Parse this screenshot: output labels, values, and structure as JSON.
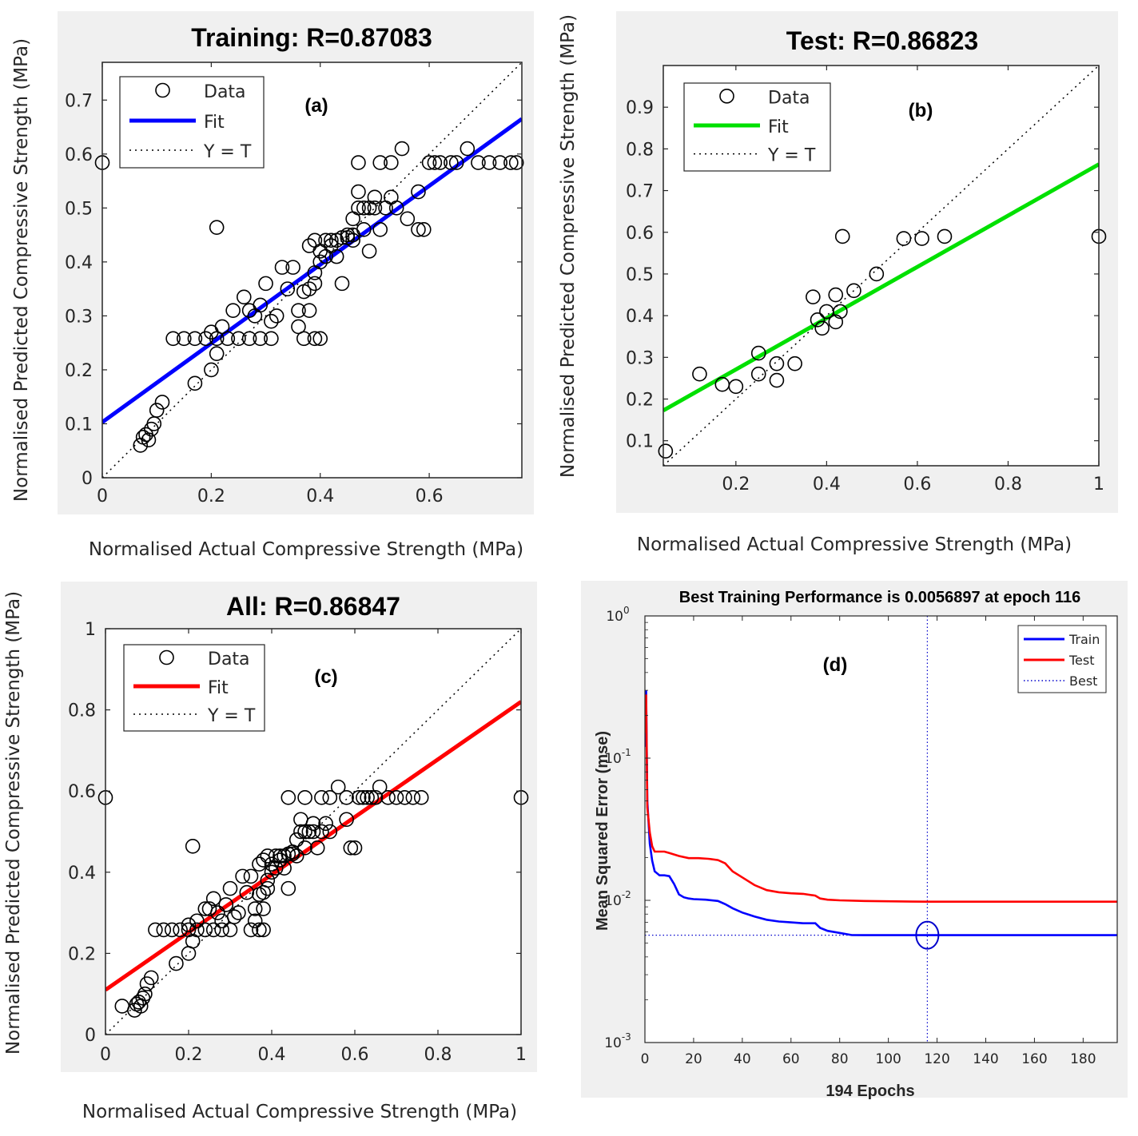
{
  "chart_data": [
    {
      "type": "scatter",
      "panel_label": "(a)",
      "title": "Training: R=0.87083",
      "xlabel": "Normalised Actual Compressive Strength (MPa)",
      "ylabel": "Normalised Predicted Compressive Strength (MPa)",
      "xlim": [
        0,
        0.77
      ],
      "ylim": [
        0,
        0.77
      ],
      "xticks": [
        0,
        0.2,
        0.4,
        0.6
      ],
      "xtick_labels": [
        "0",
        "0.2",
        "0.4",
        "0.6"
      ],
      "yticks": [
        0,
        0.1,
        0.2,
        0.3,
        0.4,
        0.5,
        0.6,
        0.7
      ],
      "ytick_labels": [
        "0",
        "0.1",
        "0.2",
        "0.3",
        "0.4",
        "0.5",
        "0.6",
        "0.7"
      ],
      "fit_color": "#0000ff",
      "fit": {
        "slope": 0.73,
        "intercept": 0.103
      },
      "legend": {
        "placement": "top-left",
        "entries": [
          "Data",
          "Fit",
          "Y = T"
        ]
      },
      "points": [
        [
          0.0,
          0.584
        ],
        [
          0.21,
          0.464
        ],
        [
          0.07,
          0.06
        ],
        [
          0.075,
          0.075
        ],
        [
          0.08,
          0.08
        ],
        [
          0.085,
          0.07
        ],
        [
          0.09,
          0.09
        ],
        [
          0.095,
          0.1
        ],
        [
          0.1,
          0.125
        ],
        [
          0.11,
          0.14
        ],
        [
          0.17,
          0.175
        ],
        [
          0.2,
          0.2
        ],
        [
          0.21,
          0.23
        ],
        [
          0.13,
          0.258
        ],
        [
          0.15,
          0.258
        ],
        [
          0.17,
          0.258
        ],
        [
          0.19,
          0.258
        ],
        [
          0.21,
          0.258
        ],
        [
          0.23,
          0.258
        ],
        [
          0.25,
          0.258
        ],
        [
          0.27,
          0.258
        ],
        [
          0.29,
          0.258
        ],
        [
          0.31,
          0.258
        ],
        [
          0.37,
          0.258
        ],
        [
          0.39,
          0.258
        ],
        [
          0.4,
          0.258
        ],
        [
          0.2,
          0.27
        ],
        [
          0.22,
          0.28
        ],
        [
          0.24,
          0.31
        ],
        [
          0.26,
          0.335
        ],
        [
          0.27,
          0.31
        ],
        [
          0.28,
          0.3
        ],
        [
          0.29,
          0.32
        ],
        [
          0.3,
          0.36
        ],
        [
          0.31,
          0.29
        ],
        [
          0.32,
          0.3
        ],
        [
          0.33,
          0.39
        ],
        [
          0.34,
          0.35
        ],
        [
          0.35,
          0.39
        ],
        [
          0.36,
          0.31
        ],
        [
          0.37,
          0.345
        ],
        [
          0.38,
          0.31
        ],
        [
          0.36,
          0.28
        ],
        [
          0.38,
          0.35
        ],
        [
          0.39,
          0.36
        ],
        [
          0.39,
          0.38
        ],
        [
          0.38,
          0.43
        ],
        [
          0.39,
          0.44
        ],
        [
          0.4,
          0.4
        ],
        [
          0.4,
          0.42
        ],
        [
          0.41,
          0.44
        ],
        [
          0.41,
          0.41
        ],
        [
          0.42,
          0.44
        ],
        [
          0.42,
          0.43
        ],
        [
          0.43,
          0.41
        ],
        [
          0.43,
          0.44
        ],
        [
          0.44,
          0.445
        ],
        [
          0.44,
          0.36
        ],
        [
          0.45,
          0.445
        ],
        [
          0.45,
          0.45
        ],
        [
          0.46,
          0.44
        ],
        [
          0.46,
          0.45
        ],
        [
          0.46,
          0.48
        ],
        [
          0.47,
          0.5
        ],
        [
          0.47,
          0.53
        ],
        [
          0.48,
          0.5
        ],
        [
          0.48,
          0.46
        ],
        [
          0.49,
          0.5
        ],
        [
          0.49,
          0.42
        ],
        [
          0.5,
          0.5
        ],
        [
          0.5,
          0.52
        ],
        [
          0.51,
          0.46
        ],
        [
          0.52,
          0.5
        ],
        [
          0.53,
          0.52
        ],
        [
          0.54,
          0.5
        ],
        [
          0.47,
          0.584
        ],
        [
          0.51,
          0.584
        ],
        [
          0.53,
          0.584
        ],
        [
          0.55,
          0.61
        ],
        [
          0.56,
          0.48
        ],
        [
          0.58,
          0.53
        ],
        [
          0.58,
          0.46
        ],
        [
          0.59,
          0.46
        ],
        [
          0.6,
          0.584
        ],
        [
          0.61,
          0.584
        ],
        [
          0.62,
          0.584
        ],
        [
          0.64,
          0.584
        ],
        [
          0.65,
          0.584
        ],
        [
          0.67,
          0.61
        ],
        [
          0.69,
          0.584
        ],
        [
          0.71,
          0.584
        ],
        [
          0.73,
          0.584
        ],
        [
          0.75,
          0.584
        ],
        [
          0.76,
          0.584
        ]
      ]
    },
    {
      "type": "scatter",
      "panel_label": "(b)",
      "title": "Test: R=0.86823",
      "xlabel": "Normalised Actual Compressive Strength (MPa)",
      "ylabel": "Normalised Predicted Compressive Strength (MPa)",
      "xlim": [
        0.04,
        1.0
      ],
      "ylim": [
        0.04,
        1.0
      ],
      "xticks": [
        0.2,
        0.4,
        0.6,
        0.8,
        1.0
      ],
      "xtick_labels": [
        "0.2",
        "0.4",
        "0.6",
        "0.8",
        "1"
      ],
      "yticks": [
        0.1,
        0.2,
        0.3,
        0.4,
        0.5,
        0.6,
        0.7,
        0.8,
        0.9
      ],
      "ytick_labels": [
        "0.1",
        "0.2",
        "0.3",
        "0.4",
        "0.5",
        "0.6",
        "0.7",
        "0.8",
        "0.9"
      ],
      "fit_color": "#00e000",
      "fit": {
        "slope": 0.615,
        "intercept": 0.148
      },
      "legend": {
        "placement": "top-left",
        "entries": [
          "Data",
          "Fit",
          "Y = T"
        ]
      },
      "points": [
        [
          0.045,
          0.075
        ],
        [
          0.12,
          0.26
        ],
        [
          0.17,
          0.235
        ],
        [
          0.2,
          0.23
        ],
        [
          0.25,
          0.31
        ],
        [
          0.25,
          0.26
        ],
        [
          0.29,
          0.285
        ],
        [
          0.29,
          0.245
        ],
        [
          0.33,
          0.285
        ],
        [
          0.37,
          0.445
        ],
        [
          0.38,
          0.39
        ],
        [
          0.39,
          0.37
        ],
        [
          0.4,
          0.41
        ],
        [
          0.42,
          0.45
        ],
        [
          0.42,
          0.385
        ],
        [
          0.43,
          0.41
        ],
        [
          0.435,
          0.59
        ],
        [
          0.46,
          0.46
        ],
        [
          0.51,
          0.5
        ],
        [
          0.57,
          0.585
        ],
        [
          0.61,
          0.585
        ],
        [
          0.66,
          0.59
        ],
        [
          1.0,
          0.59
        ]
      ]
    },
    {
      "type": "scatter",
      "panel_label": "(c)",
      "title": "All: R=0.86847",
      "xlabel": "Normalised Actual Compressive Strength (MPa)",
      "ylabel": "Normalised Predicted Compressive Strength (MPa)",
      "xlim": [
        0,
        1.0
      ],
      "ylim": [
        0,
        1.0
      ],
      "xticks": [
        0,
        0.2,
        0.4,
        0.6,
        0.8,
        1.0
      ],
      "xtick_labels": [
        "0",
        "0.2",
        "0.4",
        "0.6",
        "0.8",
        "1"
      ],
      "yticks": [
        0,
        0.2,
        0.4,
        0.6,
        0.8,
        1.0
      ],
      "ytick_labels": [
        "0",
        "0.2",
        "0.4",
        "0.6",
        "0.8",
        "1"
      ],
      "fit_color": "#ff0000",
      "fit": {
        "slope": 0.71,
        "intercept": 0.11
      },
      "legend": {
        "placement": "top-left",
        "entries": [
          "Data",
          "Fit",
          "Y = T"
        ]
      },
      "points": [
        [
          0.0,
          0.584
        ],
        [
          1.0,
          0.584
        ],
        [
          0.21,
          0.464
        ],
        [
          0.04,
          0.07
        ],
        [
          0.07,
          0.06
        ],
        [
          0.075,
          0.075
        ],
        [
          0.08,
          0.08
        ],
        [
          0.085,
          0.07
        ],
        [
          0.09,
          0.09
        ],
        [
          0.095,
          0.1
        ],
        [
          0.1,
          0.125
        ],
        [
          0.11,
          0.14
        ],
        [
          0.17,
          0.175
        ],
        [
          0.2,
          0.2
        ],
        [
          0.21,
          0.23
        ],
        [
          0.12,
          0.258
        ],
        [
          0.14,
          0.258
        ],
        [
          0.16,
          0.258
        ],
        [
          0.18,
          0.258
        ],
        [
          0.2,
          0.258
        ],
        [
          0.22,
          0.258
        ],
        [
          0.24,
          0.258
        ],
        [
          0.26,
          0.258
        ],
        [
          0.28,
          0.258
        ],
        [
          0.3,
          0.258
        ],
        [
          0.35,
          0.258
        ],
        [
          0.37,
          0.258
        ],
        [
          0.38,
          0.258
        ],
        [
          0.2,
          0.27
        ],
        [
          0.22,
          0.28
        ],
        [
          0.24,
          0.31
        ],
        [
          0.25,
          0.31
        ],
        [
          0.26,
          0.335
        ],
        [
          0.27,
          0.3
        ],
        [
          0.28,
          0.28
        ],
        [
          0.29,
          0.32
        ],
        [
          0.3,
          0.36
        ],
        [
          0.31,
          0.29
        ],
        [
          0.32,
          0.3
        ],
        [
          0.33,
          0.39
        ],
        [
          0.34,
          0.35
        ],
        [
          0.35,
          0.39
        ],
        [
          0.36,
          0.31
        ],
        [
          0.37,
          0.345
        ],
        [
          0.38,
          0.31
        ],
        [
          0.36,
          0.28
        ],
        [
          0.37,
          0.42
        ],
        [
          0.38,
          0.35
        ],
        [
          0.39,
          0.36
        ],
        [
          0.39,
          0.38
        ],
        [
          0.38,
          0.43
        ],
        [
          0.39,
          0.44
        ],
        [
          0.4,
          0.4
        ],
        [
          0.4,
          0.42
        ],
        [
          0.41,
          0.44
        ],
        [
          0.41,
          0.41
        ],
        [
          0.42,
          0.44
        ],
        [
          0.42,
          0.43
        ],
        [
          0.43,
          0.41
        ],
        [
          0.43,
          0.44
        ],
        [
          0.44,
          0.445
        ],
        [
          0.44,
          0.36
        ],
        [
          0.45,
          0.445
        ],
        [
          0.45,
          0.45
        ],
        [
          0.46,
          0.44
        ],
        [
          0.46,
          0.48
        ],
        [
          0.47,
          0.5
        ],
        [
          0.47,
          0.53
        ],
        [
          0.48,
          0.5
        ],
        [
          0.48,
          0.46
        ],
        [
          0.49,
          0.5
        ],
        [
          0.5,
          0.5
        ],
        [
          0.5,
          0.52
        ],
        [
          0.51,
          0.46
        ],
        [
          0.52,
          0.5
        ],
        [
          0.53,
          0.52
        ],
        [
          0.54,
          0.5
        ],
        [
          0.44,
          0.584
        ],
        [
          0.48,
          0.584
        ],
        [
          0.52,
          0.584
        ],
        [
          0.54,
          0.584
        ],
        [
          0.56,
          0.61
        ],
        [
          0.58,
          0.584
        ],
        [
          0.58,
          0.53
        ],
        [
          0.59,
          0.46
        ],
        [
          0.6,
          0.46
        ],
        [
          0.61,
          0.584
        ],
        [
          0.62,
          0.584
        ],
        [
          0.63,
          0.584
        ],
        [
          0.64,
          0.584
        ],
        [
          0.65,
          0.584
        ],
        [
          0.66,
          0.61
        ],
        [
          0.68,
          0.584
        ],
        [
          0.7,
          0.584
        ],
        [
          0.72,
          0.584
        ],
        [
          0.74,
          0.584
        ],
        [
          0.76,
          0.584
        ]
      ]
    },
    {
      "type": "line",
      "panel_label": "(d)",
      "title": "Best Training Performance is 0.0056897 at epoch 116",
      "xlabel": "194 Epochs",
      "ylabel": "Mean Squared Error  (mse)",
      "yscale": "log",
      "xlim": [
        0,
        194
      ],
      "ylim": [
        0.001,
        1.0
      ],
      "xticks": [
        0,
        20,
        40,
        60,
        80,
        100,
        120,
        140,
        160,
        180
      ],
      "xtick_labels": [
        "0",
        "20",
        "40",
        "60",
        "80",
        "100",
        "120",
        "140",
        "160",
        "180"
      ],
      "yticks": [
        0.001,
        0.01,
        0.1,
        1.0
      ],
      "ytick_labels": [
        {
          "base": "10",
          "exp": "-3"
        },
        {
          "base": "10",
          "exp": "-2"
        },
        {
          "base": "10",
          "exp": "-1"
        },
        {
          "base": "10",
          "exp": "0"
        }
      ],
      "best": {
        "epoch": 116,
        "value": 0.0056897
      },
      "legend": {
        "placement": "top-right",
        "entries": [
          "Train",
          "Test",
          "Best"
        ]
      },
      "series": [
        {
          "name": "Train",
          "color": "#0000ff",
          "x": [
            0,
            0.5,
            1,
            2,
            3,
            4,
            6,
            8,
            10,
            12,
            14,
            16,
            18,
            20,
            25,
            30,
            33,
            36,
            40,
            45,
            50,
            55,
            60,
            65,
            70,
            72,
            75,
            80,
            85,
            90,
            100,
            116,
            150,
            194
          ],
          "y": [
            0.12,
            0.3,
            0.05,
            0.025,
            0.019,
            0.016,
            0.015,
            0.015,
            0.0148,
            0.013,
            0.011,
            0.0105,
            0.0103,
            0.0102,
            0.0101,
            0.0099,
            0.0094,
            0.0088,
            0.0082,
            0.0077,
            0.0073,
            0.0071,
            0.007,
            0.0069,
            0.0069,
            0.0064,
            0.0061,
            0.0059,
            0.0057,
            0.00569,
            0.00569,
            0.0056897,
            0.0056897,
            0.0056897
          ]
        },
        {
          "name": "Test",
          "color": "#ff0000",
          "x": [
            0,
            0.5,
            1,
            2,
            3,
            4,
            6,
            8,
            10,
            14,
            18,
            22,
            26,
            30,
            33,
            36,
            40,
            45,
            50,
            55,
            60,
            65,
            70,
            72,
            75,
            80,
            90,
            100,
            110,
            116,
            150,
            194
          ],
          "y": [
            0.15,
            0.28,
            0.045,
            0.03,
            0.024,
            0.022,
            0.022,
            0.022,
            0.0215,
            0.0205,
            0.0198,
            0.0198,
            0.0196,
            0.0192,
            0.0182,
            0.016,
            0.0145,
            0.0128,
            0.0118,
            0.0114,
            0.0112,
            0.0111,
            0.0108,
            0.0103,
            0.0101,
            0.01,
            0.0099,
            0.00985,
            0.0098,
            0.00978,
            0.00978,
            0.00978
          ]
        }
      ]
    }
  ]
}
